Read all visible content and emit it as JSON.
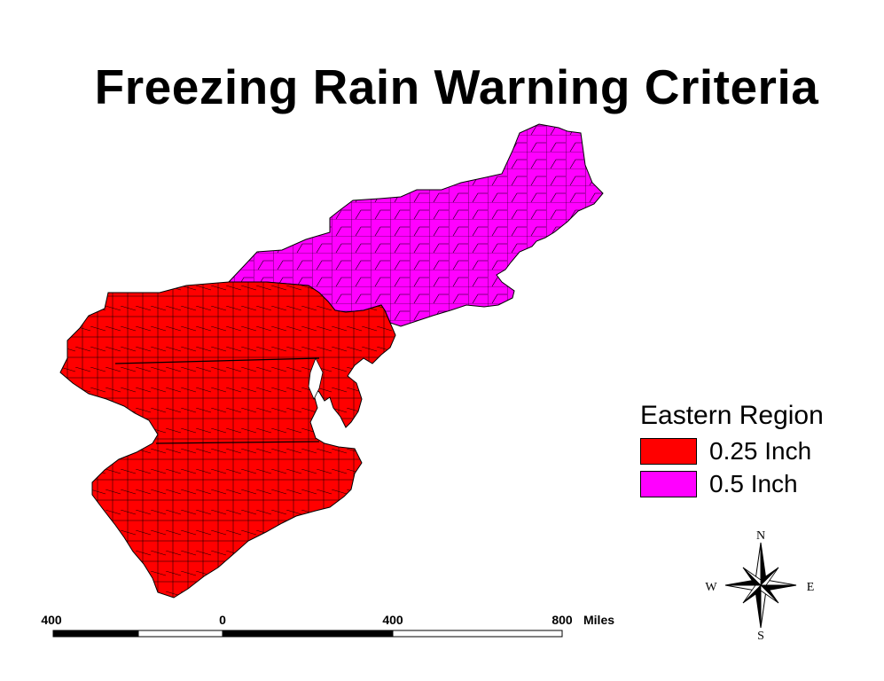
{
  "title": "Freezing Rain Warning Criteria",
  "legend": {
    "title": "Eastern Region",
    "items": [
      {
        "label": "0.25 Inch",
        "color": "#ff0000"
      },
      {
        "label": "0.5 Inch",
        "color": "#ff00ff"
      }
    ]
  },
  "scale_bar": {
    "ticks": [
      "400",
      "0",
      "400",
      "800"
    ],
    "unit": "Miles"
  },
  "compass": {
    "n": "N",
    "s": "S",
    "e": "E",
    "w": "W"
  },
  "colors": {
    "warning_025": "#ff0000",
    "warning_05": "#ff00ff",
    "border": "#000000"
  }
}
